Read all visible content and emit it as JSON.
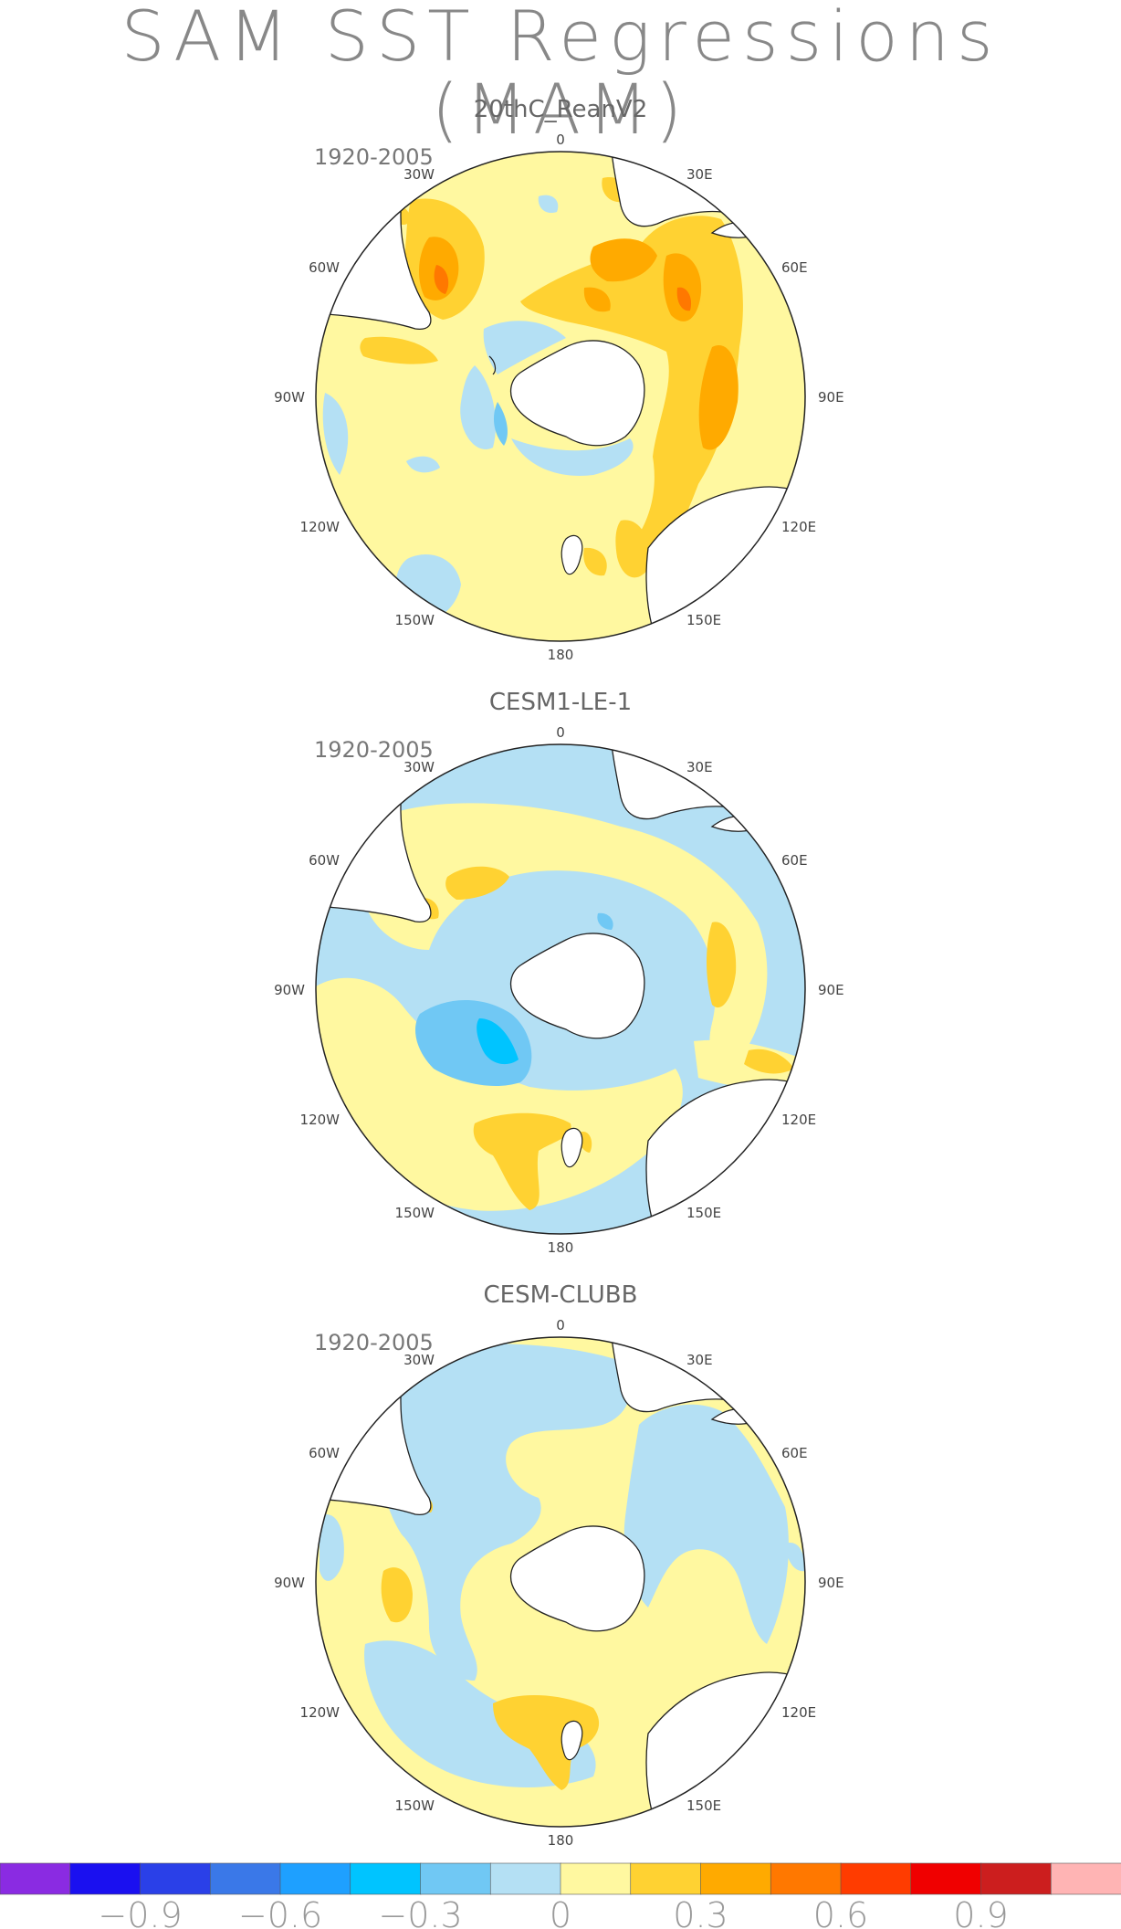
{
  "title": "SAM SST Regressions (MAM)",
  "panels": [
    {
      "model": "20thC_ReanV2",
      "period": "1920-2005"
    },
    {
      "model": "CESM1-LE-1",
      "period": "1920-2005"
    },
    {
      "model": "CESM-CLUBB",
      "period": "1920-2005"
    }
  ],
  "longitude_labels": [
    "0",
    "30E",
    "60E",
    "90E",
    "120E",
    "150E",
    "180",
    "150W",
    "120W",
    "90W",
    "60W",
    "30W"
  ],
  "colorbar": {
    "colors": [
      "#8a2be2",
      "#1a10f0",
      "#2a40e8",
      "#3a78e8",
      "#1ea0ff",
      "#00c4ff",
      "#70c8f4",
      "#b4e0f4",
      "#fff8a0",
      "#ffd232",
      "#ffaa00",
      "#ff7800",
      "#ff3c00",
      "#f00000",
      "#cc1e1e",
      "#ffb4b4"
    ],
    "tick_labels": [
      "-0.9",
      "-0.6",
      "-0.3",
      "0",
      "0.3",
      "0.6",
      "0.9"
    ]
  },
  "colors": {
    "land": "#ffffff",
    "coast": "#222222",
    "neutral_positive": "#fff8a0",
    "neutral_negative": "#b4e0f4"
  }
}
